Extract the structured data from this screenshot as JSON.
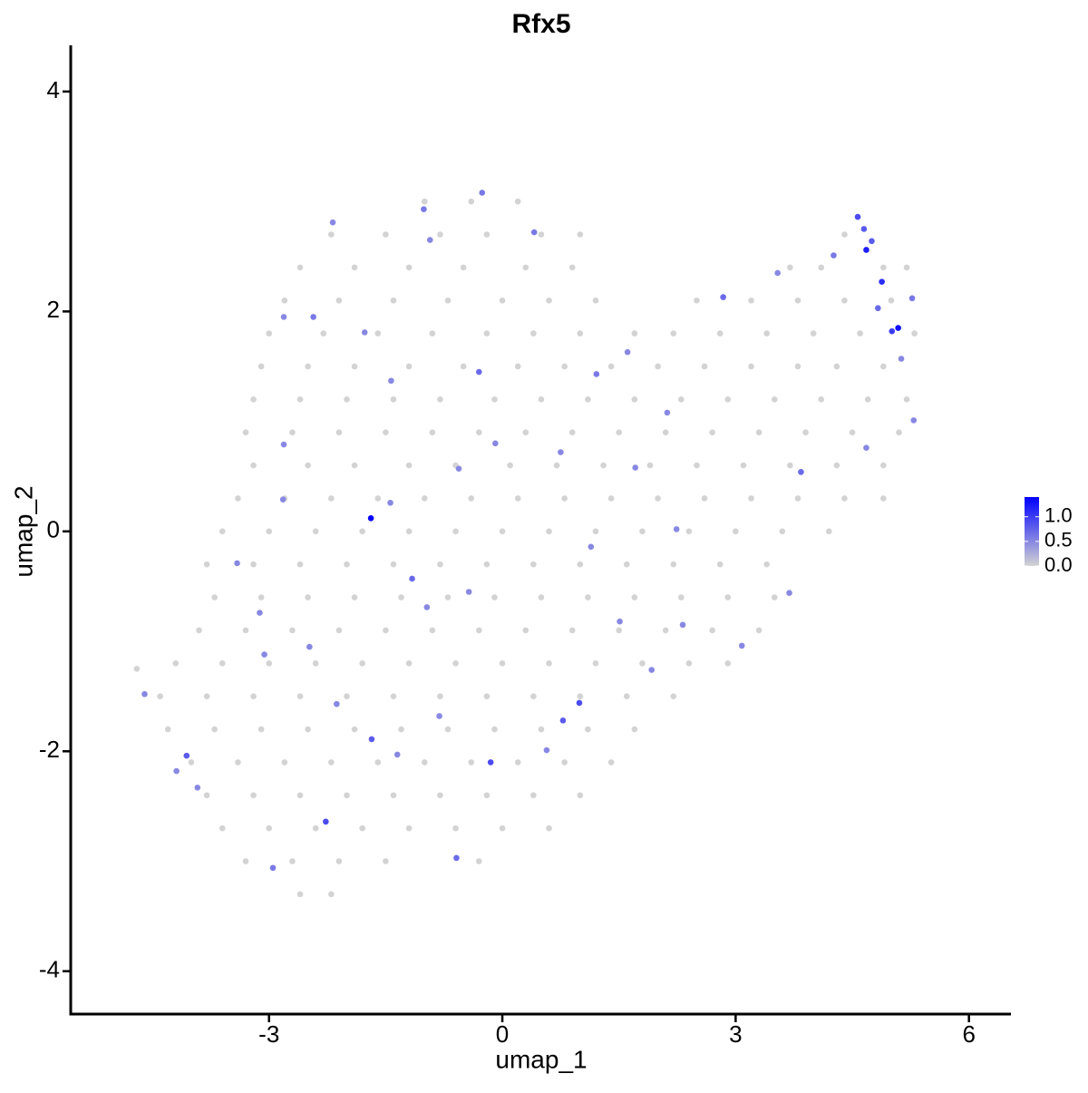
{
  "chart_data": {
    "type": "scatter",
    "title": "Rfx5",
    "x_label": "umap_1",
    "y_label": "umap_2",
    "xlim": [
      -5.55,
      6.54
    ],
    "ylim": [
      -4.39,
      4.42
    ],
    "xticks": [
      -3,
      0,
      3,
      6
    ],
    "yticks": [
      -4,
      -2,
      0,
      2,
      4
    ],
    "colors": [
      "#d3d3d3",
      "#0000ff"
    ],
    "clim": [
      0,
      1.4
    ],
    "cticks": [
      {
        "value": 0,
        "label": "0.0"
      },
      {
        "value": 0.5,
        "label": "0.5"
      },
      {
        "value": 1,
        "label": "1.0"
      }
    ],
    "x": [
      -1.0,
      -0.4,
      0.2,
      -2.2,
      -1.5,
      -0.8,
      -0.2,
      0.5,
      1.0,
      4.4,
      -2.6,
      -1.9,
      -1.2,
      -0.5,
      0.3,
      0.9,
      3.7,
      4.1,
      4.9,
      5.2,
      -2.8,
      -2.1,
      -1.4,
      -0.7,
      0.0,
      0.6,
      1.2,
      2.5,
      3.2,
      3.8,
      4.4,
      5.0,
      -3.0,
      -2.3,
      -1.6,
      -0.9,
      -0.2,
      0.4,
      1.0,
      1.7,
      2.2,
      2.8,
      3.4,
      4.0,
      4.6,
      5.3,
      -3.1,
      -2.5,
      -1.9,
      -1.2,
      -0.5,
      0.2,
      0.8,
      1.4,
      2.0,
      2.6,
      3.2,
      3.8,
      4.3,
      4.9,
      -3.2,
      -2.6,
      -2.0,
      -1.4,
      -0.8,
      -0.1,
      0.5,
      1.1,
      1.7,
      2.3,
      2.9,
      3.5,
      4.1,
      4.7,
      5.2,
      -3.3,
      -2.7,
      -2.1,
      -1.5,
      -0.9,
      -0.3,
      0.3,
      0.9,
      1.5,
      2.1,
      2.7,
      3.3,
      3.9,
      4.5,
      5.1,
      -3.2,
      -2.5,
      -1.9,
      -1.2,
      -0.6,
      0.1,
      0.7,
      1.3,
      1.9,
      2.5,
      3.1,
      3.7,
      4.3,
      4.9,
      -3.4,
      -2.8,
      -2.2,
      -1.6,
      -1.0,
      -0.4,
      0.2,
      0.8,
      1.4,
      2.0,
      2.6,
      3.2,
      3.8,
      4.4,
      4.9,
      -3.6,
      -3.0,
      -2.4,
      -1.8,
      -1.2,
      -0.6,
      0.0,
      0.6,
      1.2,
      1.8,
      2.4,
      3.0,
      3.6,
      4.2,
      -3.8,
      -3.2,
      -2.6,
      -2.0,
      -1.4,
      -0.8,
      -0.2,
      0.4,
      1.0,
      1.6,
      2.2,
      2.8,
      3.4,
      -3.7,
      -3.1,
      -2.5,
      -1.9,
      -1.3,
      -0.7,
      -0.1,
      0.5,
      1.1,
      1.7,
      2.3,
      2.9,
      3.5,
      -3.9,
      -3.3,
      -2.7,
      -2.1,
      -1.5,
      -0.9,
      -0.3,
      0.3,
      0.9,
      1.5,
      2.1,
      2.7,
      3.3,
      -4.2,
      -3.6,
      -3.0,
      -2.4,
      -1.8,
      -1.2,
      -0.6,
      0.0,
      0.6,
      1.2,
      1.8,
      2.4,
      2.9,
      -4.4,
      -3.8,
      -3.2,
      -2.6,
      -2.0,
      -1.4,
      -0.8,
      -0.2,
      0.4,
      1.0,
      1.6,
      2.2,
      -4.3,
      -3.7,
      -3.1,
      -2.5,
      -1.9,
      -1.3,
      -0.7,
      -0.1,
      0.5,
      1.1,
      1.7,
      -4.0,
      -3.4,
      -2.8,
      -2.2,
      -1.6,
      -1.0,
      -0.4,
      0.2,
      0.8,
      1.4,
      -3.8,
      -3.2,
      -2.6,
      -2.0,
      -1.4,
      -0.8,
      -0.2,
      0.4,
      1.0,
      -3.6,
      -3.0,
      -2.4,
      -1.8,
      -1.2,
      -0.6,
      0.0,
      0.6,
      -3.3,
      -2.7,
      -2.1,
      -1.5,
      -0.3,
      -2.6,
      -2.2,
      -4.7,
      -1.69,
      4.68,
      4.88,
      5.09,
      5.01,
      4.57,
      4.65,
      4.75,
      4.83,
      5.27,
      -0.15,
      0.99,
      0.78,
      -2.27,
      -1.68,
      -4.06,
      -1.16,
      -0.59,
      -2.95,
      -0.3,
      0.41,
      -1.01,
      -0.26,
      -2.18,
      -2.43,
      -2.81,
      1.21,
      2.84,
      4.26,
      3.84,
      4.68,
      5.29,
      5.13,
      3.69,
      3.08,
      2.32,
      1.92,
      1.51,
      1.14,
      2.24,
      0.75,
      -0.09,
      -0.56,
      -1.44,
      -3.41,
      -3.12,
      -3.06,
      -2.48,
      -2.13,
      -0.81,
      -1.35,
      -3.92,
      -4.6,
      -4.19,
      -0.97,
      -0.43,
      0.57,
      1.71,
      2.12,
      3.54,
      1.61,
      -0.93,
      -1.77,
      -2.81,
      -2.82,
      -1.43
    ],
    "values": [
      3.0,
      3.0,
      3.0,
      2.7,
      2.7,
      2.7,
      2.7,
      2.7,
      2.7,
      2.7,
      2.4,
      2.4,
      2.4,
      2.4,
      2.4,
      2.4,
      2.4,
      2.4,
      2.4,
      2.4,
      2.1,
      2.1,
      2.1,
      2.1,
      2.1,
      2.1,
      2.1,
      2.1,
      2.1,
      2.1,
      2.1,
      2.1,
      1.8,
      1.8,
      1.8,
      1.8,
      1.8,
      1.8,
      1.8,
      1.8,
      1.8,
      1.8,
      1.8,
      1.8,
      1.8,
      1.8,
      1.5,
      1.5,
      1.5,
      1.5,
      1.5,
      1.5,
      1.5,
      1.5,
      1.5,
      1.5,
      1.5,
      1.5,
      1.5,
      1.5,
      1.2,
      1.2,
      1.2,
      1.2,
      1.2,
      1.2,
      1.2,
      1.2,
      1.2,
      1.2,
      1.2,
      1.2,
      1.2,
      1.2,
      1.2,
      0.9,
      0.9,
      0.9,
      0.9,
      0.9,
      0.9,
      0.9,
      0.9,
      0.9,
      0.9,
      0.9,
      0.9,
      0.9,
      0.9,
      0.9,
      0.6,
      0.6,
      0.6,
      0.6,
      0.6,
      0.6,
      0.6,
      0.6,
      0.6,
      0.6,
      0.6,
      0.6,
      0.6,
      0.6,
      0.3,
      0.3,
      0.3,
      0.3,
      0.3,
      0.3,
      0.3,
      0.3,
      0.3,
      0.3,
      0.3,
      0.3,
      0.3,
      0.3,
      0.3,
      0.0,
      0.0,
      0.0,
      0.0,
      0.0,
      0.0,
      0.0,
      0.0,
      0.0,
      0.0,
      0.0,
      0.0,
      0.0,
      0.0,
      -0.3,
      -0.3,
      -0.3,
      -0.3,
      -0.3,
      -0.3,
      -0.3,
      -0.3,
      -0.3,
      -0.3,
      -0.3,
      -0.3,
      -0.3,
      -0.6,
      -0.6,
      -0.6,
      -0.6,
      -0.6,
      -0.6,
      -0.6,
      -0.6,
      -0.6,
      -0.6,
      -0.6,
      -0.6,
      -0.6,
      -0.9,
      -0.9,
      -0.9,
      -0.9,
      -0.9,
      -0.9,
      -0.9,
      -0.9,
      -0.9,
      -0.9,
      -0.9,
      -0.9,
      -0.9,
      -1.2,
      -1.2,
      -1.2,
      -1.2,
      -1.2,
      -1.2,
      -1.2,
      -1.2,
      -1.2,
      -1.2,
      -1.2,
      -1.2,
      -1.2,
      -1.5,
      -1.5,
      -1.5,
      -1.5,
      -1.5,
      -1.5,
      -1.5,
      -1.5,
      -1.5,
      -1.5,
      -1.5,
      -1.5,
      -1.8,
      -1.8,
      -1.8,
      -1.8,
      -1.8,
      -1.8,
      -1.8,
      -1.8,
      -1.8,
      -1.8,
      -1.8,
      -2.1,
      -2.1,
      -2.1,
      -2.1,
      -2.1,
      -2.1,
      -2.1,
      -2.1,
      -2.1,
      -2.1,
      -2.4,
      -2.4,
      -2.4,
      -2.4,
      -2.4,
      -2.4,
      -2.4,
      -2.4,
      -2.4,
      -2.7,
      -2.7,
      -2.7,
      -2.7,
      -2.7,
      -2.7,
      -2.7,
      -2.7,
      -3.0,
      -3.0,
      -3.0,
      -3.0,
      -3.0,
      -3.3,
      -3.3,
      -1.25,
      0.12,
      2.56,
      2.27,
      1.85,
      1.82,
      2.86,
      2.75,
      2.64,
      2.03,
      2.12,
      -2.1,
      -1.56,
      -1.72,
      -2.64,
      -1.89,
      -2.04,
      -0.43,
      -2.97,
      -3.06,
      1.45,
      2.72,
      2.93,
      3.08,
      2.81,
      1.95,
      1.95,
      1.43,
      2.13,
      2.51,
      0.54,
      0.76,
      1.01,
      1.57,
      -0.56,
      -1.04,
      -0.85,
      -1.26,
      -0.82,
      -0.14,
      0.02,
      0.72,
      0.8,
      0.57,
      0.26,
      -0.29,
      -0.74,
      -1.12,
      -1.05,
      -1.57,
      -1.68,
      -2.03,
      -2.33,
      -1.48,
      -2.18,
      -0.69,
      -0.55,
      -1.99,
      0.58,
      1.08,
      2.35,
      1.63,
      2.65,
      1.81,
      0.79,
      0.29,
      1.37
    ],
    "expression": [
      0,
      0,
      0,
      0,
      0,
      0,
      0,
      0,
      0,
      0,
      0,
      0,
      0,
      0,
      0,
      0,
      0,
      0,
      0,
      0,
      0,
      0,
      0,
      0,
      0,
      0,
      0,
      0,
      0,
      0,
      0,
      0,
      0,
      0,
      0,
      0,
      0,
      0,
      0,
      0,
      0,
      0,
      0,
      0,
      0,
      0,
      0,
      0,
      0,
      0,
      0,
      0,
      0,
      0,
      0,
      0,
      0,
      0,
      0,
      0,
      0,
      0,
      0,
      0,
      0,
      0,
      0,
      0,
      0,
      0,
      0,
      0,
      0,
      0,
      0,
      0,
      0,
      0,
      0,
      0,
      0,
      0,
      0,
      0,
      0,
      0,
      0,
      0,
      0,
      0,
      0,
      0,
      0,
      0,
      0,
      0,
      0,
      0,
      0,
      0,
      0,
      0,
      0,
      0,
      0,
      0,
      0,
      0,
      0,
      0,
      0,
      0,
      0,
      0,
      0,
      0,
      0,
      0,
      0,
      0,
      0,
      0,
      0,
      0,
      0,
      0,
      0,
      0,
      0,
      0,
      0,
      0,
      0,
      0,
      0,
      0,
      0,
      0,
      0,
      0,
      0,
      0,
      0,
      0,
      0,
      0,
      0,
      0,
      0,
      0,
      0,
      0,
      0,
      0,
      0,
      0,
      0,
      0,
      0,
      0,
      0,
      0,
      0,
      0,
      0,
      0,
      0,
      0,
      0,
      0,
      0,
      0,
      0,
      0,
      0,
      0,
      0,
      0,
      0,
      0,
      0,
      0,
      0,
      0,
      0,
      0,
      0,
      0,
      0,
      0,
      0,
      0,
      0,
      0,
      0,
      0,
      0,
      0,
      0,
      0,
      0,
      0,
      0,
      0,
      0,
      0,
      0,
      0,
      0,
      0,
      0,
      0,
      0,
      0,
      0,
      0,
      0,
      0,
      0,
      0,
      0,
      0,
      0,
      0,
      0,
      0,
      0,
      0,
      0,
      0,
      0,
      0,
      0,
      0,
      0,
      0,
      0,
      0,
      0,
      0,
      0,
      0,
      0,
      1.4,
      1.2,
      1.1,
      1.3,
      1.0,
      0.9,
      0.8,
      0.8,
      0.7,
      0.6,
      0.9,
      0.9,
      0.8,
      0.9,
      0.8,
      0.8,
      0.7,
      0.7,
      0.6,
      0.7,
      0.6,
      0.6,
      0.6,
      0.5,
      0.6,
      0.5,
      0.6,
      0.7,
      0.6,
      0.7,
      0.5,
      0.5,
      0.5,
      0.5,
      0.5,
      0.5,
      0.5,
      0.5,
      0.5,
      0.5,
      0.5,
      0.5,
      0.5,
      0.5,
      0.5,
      0.5,
      0.5,
      0.5,
      0.5,
      0.5,
      0.5,
      0.5,
      0.5,
      0.5,
      0.5,
      0.5,
      0.5,
      0.5,
      0.5,
      0.5,
      0.5,
      0.5,
      0.5,
      0.5,
      0.5,
      0.5
    ]
  }
}
